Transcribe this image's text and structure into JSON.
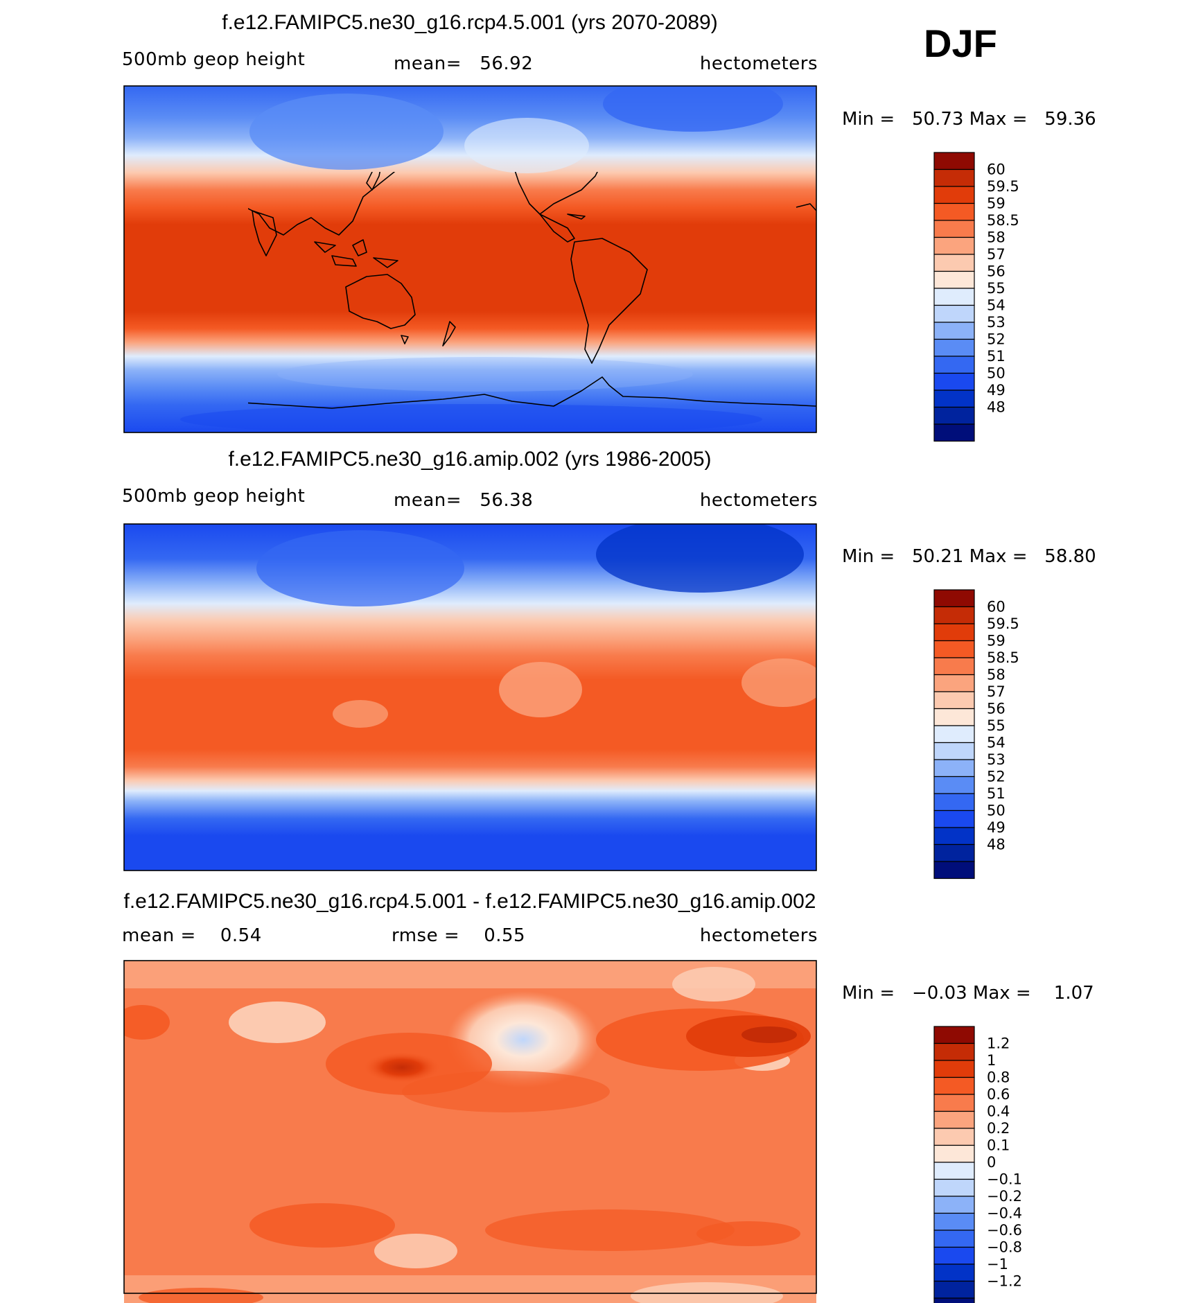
{
  "season": "DJF",
  "colors": {
    "height_scale": [
      "#000e7a",
      "#00239e",
      "#0233c7",
      "#1a49ef",
      "#3468f2",
      "#5a8cf5",
      "#8cb2f8",
      "#bfd6fb",
      "#dfecfd",
      "#fde7d8",
      "#fccab0",
      "#fba47e",
      "#f87b4c",
      "#f45a24",
      "#e13c0a",
      "#c52c06",
      "#8f0a02"
    ],
    "diff_scale": [
      "#000e7a",
      "#00239e",
      "#0233c7",
      "#1a49ef",
      "#3468f2",
      "#5a8cf5",
      "#8cb2f8",
      "#bfd6fb",
      "#dfecfd",
      "#fde7d8",
      "#fccab0",
      "#fba47e",
      "#f87b4c",
      "#f45a24",
      "#e13c0a",
      "#c52c06",
      "#8f0a02"
    ]
  },
  "panels": [
    {
      "title": "f.e12.FAMIPC5.ne30_g16.rcp4.5.001 (yrs 2070-2089)",
      "variable": "500mb geop height",
      "stat1": "mean=   56.92",
      "stat2": "",
      "units": "hectometers",
      "minmax": "Min =   50.73 Max =   59.36",
      "colorbar_labels": [
        "60",
        "59.5",
        "59",
        "58.5",
        "58",
        "57",
        "56",
        "55",
        "54",
        "53",
        "52",
        "51",
        "50",
        "49",
        "48"
      ]
    },
    {
      "title": "f.e12.FAMIPC5.ne30_g16.amip.002 (yrs 1986-2005)",
      "variable": "500mb geop height",
      "stat1": "mean=   56.38",
      "stat2": "",
      "units": "hectometers",
      "minmax": "Min =   50.21 Max =   58.80",
      "colorbar_labels": [
        "60",
        "59.5",
        "59",
        "58.5",
        "58",
        "57",
        "56",
        "55",
        "54",
        "53",
        "52",
        "51",
        "50",
        "49",
        "48"
      ]
    },
    {
      "title": "f.e12.FAMIPC5.ne30_g16.rcp4.5.001 - f.e12.FAMIPC5.ne30_g16.amip.002",
      "variable": "",
      "stat1": "mean =    0.54",
      "stat2": "rmse =    0.55",
      "units": "hectometers",
      "minmax": "Min =   −0.03 Max =    1.07",
      "colorbar_labels": [
        "1.2",
        "1",
        "0.8",
        "0.6",
        "0.4",
        "0.2",
        "0.1",
        "0",
        "−0.1",
        "−0.2",
        "−0.4",
        "−0.6",
        "−0.8",
        "−1",
        "−1.2"
      ]
    }
  ]
}
